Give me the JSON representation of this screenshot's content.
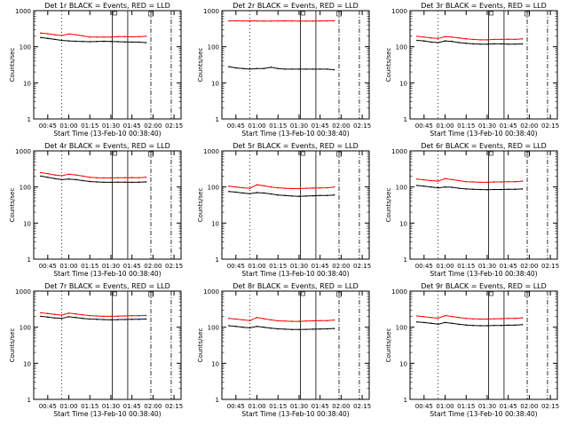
{
  "figure": {
    "background": "#ffffff"
  },
  "colors": {
    "events": "#000000",
    "lld": "#ff0000",
    "axes": "#000000"
  },
  "chart_data": [
    {
      "type": "line",
      "title": "Det 1r BLACK = Events, RED = LLD",
      "xlabel": "Start Time (13-Feb-10 00:38:40)",
      "ylabel": "Counts/sec",
      "yscale": "log",
      "ylim": [
        1,
        1000
      ],
      "yticks": [
        "1",
        "10",
        "100",
        "1000"
      ],
      "xticks": [
        "00:45",
        "01:00",
        "01:15",
        "01:30",
        "01:45",
        "02:00",
        "02:15"
      ],
      "x": [
        -5,
        0,
        5,
        10,
        15,
        20,
        25,
        30,
        35,
        40,
        45,
        50,
        55,
        60,
        65,
        70
      ],
      "series": [
        {
          "color": "#000000",
          "values": [
            180,
            170,
            160,
            150,
            145,
            142,
            140,
            138,
            140,
            142,
            140,
            138,
            136,
            135,
            134,
            130
          ]
        },
        {
          "color": "#ff0000",
          "values": [
            240,
            230,
            215,
            205,
            225,
            215,
            200,
            185,
            185,
            185,
            185,
            190,
            190,
            188,
            190,
            195
          ]
        }
      ]
    },
    {
      "type": "line",
      "title": "Det 2r BLACK = Events, RED = LLD",
      "xlabel": "Start Time (13-Feb-10 00:38:40)",
      "ylabel": "Counts/sec",
      "yscale": "log",
      "ylim": [
        1,
        1000
      ],
      "yticks": [
        "1",
        "10",
        "100",
        "1000"
      ],
      "xticks": [
        "00:45",
        "01:00",
        "01:15",
        "01:30",
        "01:45",
        "02:00",
        "02:15"
      ],
      "x": [
        -5,
        0,
        5,
        10,
        15,
        20,
        25,
        30,
        35,
        40,
        45,
        50,
        55,
        60,
        65,
        70
      ],
      "series": [
        {
          "color": "#000000",
          "values": [
            28,
            26,
            25,
            24,
            25,
            25,
            27,
            25,
            24,
            24,
            24,
            24,
            24,
            24,
            24,
            23
          ]
        },
        {
          "color": "#ff0000",
          "values": [
            520,
            520,
            518,
            520,
            518,
            515,
            516,
            518,
            520,
            518,
            515,
            516,
            515,
            518,
            520,
            522
          ]
        }
      ]
    },
    {
      "type": "line",
      "title": "Det 3r BLACK = Events, RED = LLD",
      "xlabel": "Start Time (13-Feb-10 00:38:40)",
      "ylabel": "Counts/sec",
      "yscale": "log",
      "ylim": [
        1,
        1000
      ],
      "yticks": [
        "1",
        "10",
        "100",
        "1000"
      ],
      "xticks": [
        "00:45",
        "01:00",
        "01:15",
        "01:30",
        "01:45",
        "02:00",
        "02:15"
      ],
      "x": [
        -5,
        0,
        5,
        10,
        15,
        20,
        25,
        30,
        35,
        40,
        45,
        50,
        55,
        60,
        65,
        70
      ],
      "series": [
        {
          "color": "#000000",
          "values": [
            150,
            145,
            135,
            130,
            145,
            140,
            130,
            125,
            120,
            118,
            118,
            120,
            120,
            118,
            118,
            120
          ]
        },
        {
          "color": "#ff0000",
          "values": [
            195,
            185,
            175,
            170,
            190,
            185,
            175,
            165,
            160,
            155,
            155,
            160,
            160,
            162,
            160,
            165
          ]
        }
      ]
    },
    {
      "type": "line",
      "title": "Det 4r BLACK = Events, RED = LLD",
      "xlabel": "Start Time (13-Feb-10 00:38:40)",
      "ylabel": "Counts/sec",
      "yscale": "log",
      "ylim": [
        1,
        1000
      ],
      "yticks": [
        "1",
        "10",
        "100",
        "1000"
      ],
      "xticks": [
        "00:45",
        "01:00",
        "01:15",
        "01:30",
        "01:45",
        "02:00",
        "02:15"
      ],
      "x": [
        -5,
        0,
        5,
        10,
        15,
        20,
        25,
        30,
        35,
        40,
        45,
        50,
        55,
        60,
        65,
        70
      ],
      "series": [
        {
          "color": "#000000",
          "values": [
            200,
            185,
            170,
            160,
            165,
            160,
            150,
            142,
            138,
            135,
            135,
            136,
            136,
            135,
            136,
            138
          ]
        },
        {
          "color": "#ff0000",
          "values": [
            250,
            235,
            215,
            205,
            225,
            215,
            200,
            185,
            180,
            178,
            178,
            180,
            180,
            182,
            180,
            185
          ]
        }
      ]
    },
    {
      "type": "line",
      "title": "Det 5r BLACK = Events, RED = LLD",
      "xlabel": "Start Time (13-Feb-10 00:38:40)",
      "ylabel": "Counts/sec",
      "yscale": "log",
      "ylim": [
        1,
        1000
      ],
      "yticks": [
        "1",
        "10",
        "100",
        "1000"
      ],
      "xticks": [
        "00:45",
        "01:00",
        "01:15",
        "01:30",
        "01:45",
        "02:00",
        "02:15"
      ],
      "x": [
        -5,
        0,
        5,
        10,
        15,
        20,
        25,
        30,
        35,
        40,
        45,
        50,
        55,
        60,
        65,
        70
      ],
      "series": [
        {
          "color": "#000000",
          "values": [
            75,
            72,
            68,
            65,
            70,
            68,
            64,
            60,
            58,
            56,
            55,
            56,
            57,
            58,
            58,
            60
          ]
        },
        {
          "color": "#ff0000",
          "values": [
            105,
            100,
            95,
            92,
            115,
            108,
            100,
            95,
            92,
            90,
            90,
            92,
            93,
            94,
            95,
            100
          ]
        }
      ]
    },
    {
      "type": "line",
      "title": "Det 6r BLACK = Events, RED = LLD",
      "xlabel": "Start Time (13-Feb-10 00:38:40)",
      "ylabel": "Counts/sec",
      "yscale": "log",
      "ylim": [
        1,
        1000
      ],
      "yticks": [
        "1",
        "10",
        "100",
        "1000"
      ],
      "xticks": [
        "00:45",
        "01:00",
        "01:15",
        "01:30",
        "01:45",
        "02:00",
        "02:15"
      ],
      "x": [
        -5,
        0,
        5,
        10,
        15,
        20,
        25,
        30,
        35,
        40,
        45,
        50,
        55,
        60,
        65,
        70
      ],
      "series": [
        {
          "color": "#000000",
          "values": [
            110,
            105,
            100,
            95,
            100,
            98,
            92,
            88,
            86,
            85,
            84,
            85,
            85,
            86,
            86,
            88
          ]
        },
        {
          "color": "#ff0000",
          "values": [
            165,
            158,
            150,
            145,
            170,
            160,
            150,
            140,
            138,
            135,
            135,
            138,
            138,
            140,
            140,
            145
          ]
        }
      ]
    },
    {
      "type": "line",
      "title": "Det 7r BLACK = Events, RED = LLD",
      "xlabel": "Start Time (13-Feb-10 00:38:40)",
      "ylabel": "Counts/sec",
      "yscale": "log",
      "ylim": [
        1,
        1000
      ],
      "yticks": [
        "1",
        "10",
        "100",
        "1000"
      ],
      "xticks": [
        "00:45",
        "01:00",
        "01:15",
        "01:30",
        "01:45",
        "02:00",
        "02:15"
      ],
      "x": [
        -5,
        0,
        5,
        10,
        15,
        20,
        25,
        30,
        35,
        40,
        45,
        50,
        55,
        60,
        65,
        70
      ],
      "series": [
        {
          "color": "#000000",
          "values": [
            200,
            190,
            180,
            175,
            195,
            185,
            175,
            168,
            165,
            162,
            160,
            162,
            163,
            165,
            165,
            168
          ]
        },
        {
          "color": "#ff0000",
          "values": [
            250,
            240,
            225,
            215,
            245,
            232,
            220,
            210,
            205,
            200,
            200,
            202,
            205,
            208,
            208,
            212
          ]
        }
      ]
    },
    {
      "type": "line",
      "title": "Det 8r BLACK = Events, RED = LLD",
      "xlabel": "Start Time (13-Feb-10 00:38:40)",
      "ylabel": "Counts/sec",
      "yscale": "log",
      "ylim": [
        1,
        1000
      ],
      "yticks": [
        "1",
        "10",
        "100",
        "1000"
      ],
      "xticks": [
        "00:45",
        "01:00",
        "01:15",
        "01:30",
        "01:45",
        "02:00",
        "02:15"
      ],
      "x": [
        -5,
        0,
        5,
        10,
        15,
        20,
        25,
        30,
        35,
        40,
        45,
        50,
        55,
        60,
        65,
        70
      ],
      "series": [
        {
          "color": "#000000",
          "values": [
            110,
            105,
            100,
            96,
            105,
            100,
            94,
            90,
            88,
            86,
            86,
            87,
            88,
            89,
            90,
            92
          ]
        },
        {
          "color": "#ff0000",
          "values": [
            175,
            168,
            160,
            152,
            185,
            172,
            160,
            150,
            148,
            145,
            145,
            148,
            150,
            152,
            152,
            158
          ]
        }
      ]
    },
    {
      "type": "line",
      "title": "Det 9r BLACK = Events, RED = LLD",
      "xlabel": "Start Time (13-Feb-10 00:38:40)",
      "ylabel": "Counts/sec",
      "yscale": "log",
      "ylim": [
        1,
        1000
      ],
      "yticks": [
        "1",
        "10",
        "100",
        "1000"
      ],
      "xticks": [
        "00:45",
        "01:00",
        "01:15",
        "01:30",
        "01:45",
        "02:00",
        "02:15"
      ],
      "x": [
        -5,
        0,
        5,
        10,
        15,
        20,
        25,
        30,
        35,
        40,
        45,
        50,
        55,
        60,
        65,
        70
      ],
      "series": [
        {
          "color": "#000000",
          "values": [
            140,
            135,
            128,
            122,
            135,
            128,
            120,
            115,
            112,
            110,
            110,
            112,
            112,
            114,
            114,
            118
          ]
        },
        {
          "color": "#ff0000",
          "values": [
            205,
            195,
            185,
            178,
            210,
            198,
            185,
            175,
            170,
            168,
            168,
            170,
            172,
            175,
            175,
            182
          ]
        }
      ]
    }
  ]
}
